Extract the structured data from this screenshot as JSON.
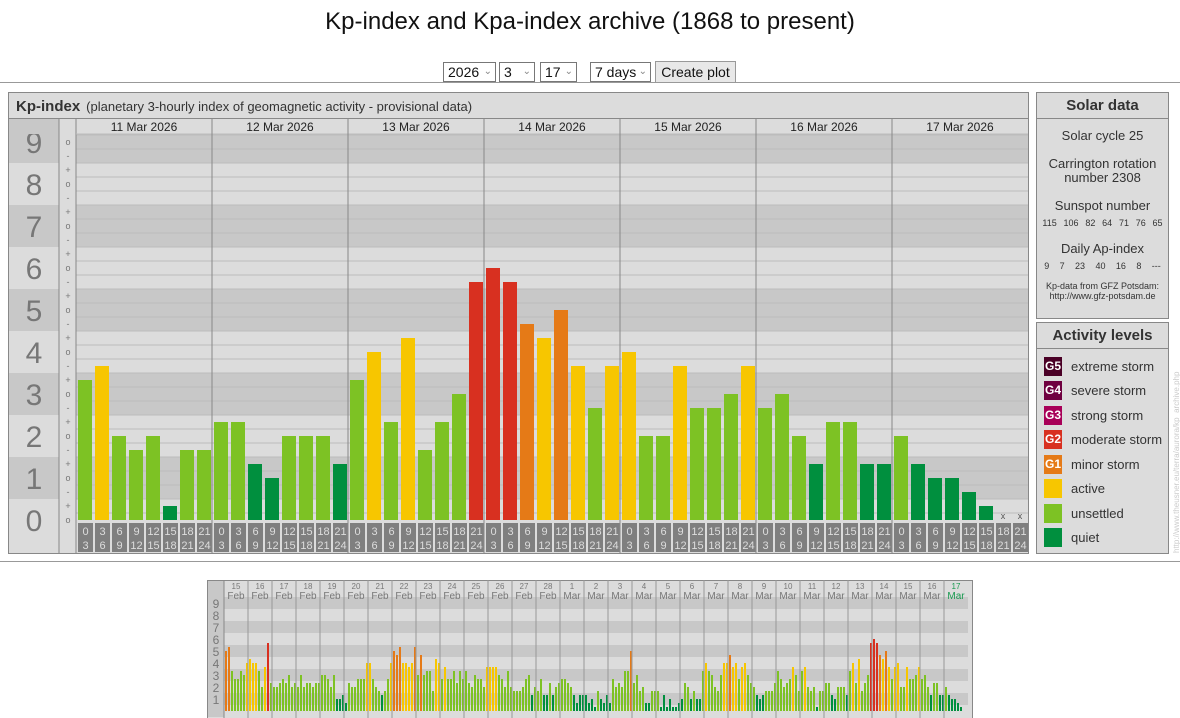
{
  "page_title": "Kp-index and Kpa-index archive (1868 to present)",
  "controls": {
    "year": "2026",
    "month": "3",
    "day": "17",
    "range": "7 days",
    "create_label": "Create plot"
  },
  "main_panel": {
    "title": "Kp-index",
    "subtitle": "(planetary 3-hourly index of geomagnetic activity - provisional data)"
  },
  "solar": {
    "title": "Solar data",
    "cycle": "Solar cycle 25",
    "carrington_1": "Carrington rotation",
    "carrington_2": "number 2308",
    "sunspot_title": "Sunspot number",
    "sunspots": [
      "115",
      "106",
      "82",
      "64",
      "71",
      "76",
      "65"
    ],
    "ap_title": "Daily Ap-index",
    "ap": [
      "9",
      "7",
      "23",
      "40",
      "16",
      "8",
      "---"
    ],
    "source_1": "Kp-data from GFZ Potsdam:",
    "source_2": "http://www.gfz-potsdam.de"
  },
  "activity": {
    "title": "Activity levels",
    "levels": [
      {
        "badge": "G5",
        "label": "extreme storm",
        "color": "#4a0026"
      },
      {
        "badge": "G4",
        "label": "severe storm",
        "color": "#6f0040"
      },
      {
        "badge": "G3",
        "label": "strong storm",
        "color": "#a80058"
      },
      {
        "badge": "G2",
        "label": "moderate storm",
        "color": "#d83020"
      },
      {
        "badge": "G1",
        "label": "minor storm",
        "color": "#e57a17"
      },
      {
        "badge": "",
        "label": "active",
        "color": "#f7c600"
      },
      {
        "badge": "",
        "label": "unsettled",
        "color": "#7dc224"
      },
      {
        "badge": "",
        "label": "quiet",
        "color": "#008f3e"
      }
    ]
  },
  "watermark": "http://www.theusner.eu/terra/aurora/kp_archive.php",
  "chart_data": {
    "type": "bar",
    "title": "Kp-index",
    "year": "2026",
    "ylim": [
      0,
      9
    ],
    "y_ticks": [
      "0",
      "1",
      "2",
      "3",
      "4",
      "5",
      "6",
      "7",
      "8",
      "9"
    ],
    "sub_marks": [
      "o",
      "+",
      "-"
    ],
    "hours": [
      [
        "0",
        "3"
      ],
      [
        "3",
        "6"
      ],
      [
        "6",
        "9"
      ],
      [
        "9",
        "12"
      ],
      [
        "12",
        "15"
      ],
      [
        "15",
        "18"
      ],
      [
        "18",
        "21"
      ],
      [
        "21",
        "24"
      ]
    ],
    "missing_mark": "x",
    "main_days_count": 7,
    "days": [
      {
        "day": "15",
        "month": "Feb",
        "kp": [
          "5o",
          "5+",
          "3+",
          "3-",
          "3-",
          "3+",
          "3o",
          "4o"
        ]
      },
      {
        "day": "16",
        "month": "Feb",
        "kp": [
          "4+",
          "4o",
          "4o",
          "3+",
          "2o",
          "4-",
          "6-",
          "2+"
        ]
      },
      {
        "day": "17",
        "month": "Feb",
        "kp": [
          "2o",
          "2o",
          "2+",
          "3-",
          "2+",
          "3o",
          "2o",
          "2+"
        ]
      },
      {
        "day": "18",
        "month": "Feb",
        "kp": [
          "2o",
          "3o",
          "2o",
          "2+",
          "2+",
          "2o",
          "2+",
          "2+"
        ]
      },
      {
        "day": "19",
        "month": "Feb",
        "kp": [
          "3o",
          "3o",
          "3-",
          "2o",
          "3o",
          "1o",
          "1o",
          "1+"
        ]
      },
      {
        "day": "20",
        "month": "Feb",
        "kp": [
          "1-",
          "2+",
          "2o",
          "2o",
          "3-",
          "3-",
          "3-",
          "4o"
        ]
      },
      {
        "day": "21",
        "month": "Feb",
        "kp": [
          "4o",
          "3-",
          "2o",
          "2-",
          "1+",
          "2-",
          "3-",
          "4o"
        ]
      },
      {
        "day": "22",
        "month": "Feb",
        "kp": [
          "5o",
          "5-",
          "5+",
          "4o",
          "4o",
          "4-",
          "4o",
          "5+"
        ]
      },
      {
        "day": "23",
        "month": "Feb",
        "kp": [
          "3o",
          "5-",
          "3o",
          "3+",
          "3+",
          "2-",
          "4+",
          "4o"
        ]
      },
      {
        "day": "24",
        "month": "Feb",
        "kp": [
          "3-",
          "4-",
          "3-",
          "3-",
          "3+",
          "2+",
          "3+",
          "3-"
        ]
      },
      {
        "day": "25",
        "month": "Feb",
        "kp": [
          "3+",
          "2+",
          "2o",
          "3o",
          "3-",
          "3-",
          "2o",
          "4-"
        ]
      },
      {
        "day": "26",
        "month": "Feb",
        "kp": [
          "4-",
          "4-",
          "4-",
          "3o",
          "3-",
          "2o",
          "3+",
          "2o"
        ]
      },
      {
        "day": "27",
        "month": "Feb",
        "kp": [
          "2-",
          "2-",
          "2-",
          "2o",
          "3-",
          "3o",
          "1+",
          "2o"
        ]
      },
      {
        "day": "28",
        "month": "Feb",
        "kp": [
          "2-",
          "3-",
          "1+",
          "1+",
          "2+",
          "1+",
          "2o",
          "2+"
        ]
      },
      {
        "day": "1",
        "month": "Mar",
        "kp": [
          "3-",
          "3-",
          "2+",
          "2o",
          "1+",
          "1-",
          "1+",
          "1+"
        ]
      },
      {
        "day": "2",
        "month": "Mar",
        "kp": [
          "1+",
          "1-",
          "1o",
          "0+",
          "2-",
          "1o",
          "1-",
          "1+"
        ]
      },
      {
        "day": "3",
        "month": "Mar",
        "kp": [
          "1-",
          "3-",
          "2o",
          "2+",
          "2o",
          "3+",
          "3+",
          "5o"
        ]
      },
      {
        "day": "4",
        "month": "Mar",
        "kp": [
          "2+",
          "3o",
          "2-",
          "2o",
          "1-",
          "1-",
          "2-",
          "2-"
        ]
      },
      {
        "day": "5",
        "month": "Mar",
        "kp": [
          "2-",
          "0+",
          "1+",
          "0+",
          "1o",
          "0+",
          "0+",
          "1-"
        ]
      },
      {
        "day": "6",
        "month": "Mar",
        "kp": [
          "1o",
          "2+",
          "2o",
          "1o",
          "2-",
          "1o",
          "1o",
          "3+"
        ]
      },
      {
        "day": "7",
        "month": "Mar",
        "kp": [
          "4o",
          "3+",
          "3o",
          "2o",
          "2-",
          "3o",
          "4o",
          "4o"
        ]
      },
      {
        "day": "8",
        "month": "Mar",
        "kp": [
          "5-",
          "4-",
          "4o",
          "3-",
          "4-",
          "4o",
          "3o",
          "2+"
        ]
      },
      {
        "day": "9",
        "month": "Mar",
        "kp": [
          "2o",
          "1+",
          "1o",
          "1+",
          "2-",
          "2-",
          "2-",
          "2+"
        ]
      },
      {
        "day": "10",
        "month": "Mar",
        "kp": [
          "3+",
          "3-",
          "2o",
          "2+",
          "3-",
          "4-",
          "3o",
          "2-"
        ]
      },
      {
        "day": "11",
        "month": "Mar",
        "kp": [
          "3+",
          "4-",
          "2o",
          "2-",
          "2o",
          "0+",
          "2-",
          "2-"
        ]
      },
      {
        "day": "12",
        "month": "Mar",
        "kp": [
          "2+",
          "2+",
          "1+",
          "1o",
          "2o",
          "2o",
          "2o",
          "1+"
        ]
      },
      {
        "day": "13",
        "month": "Mar",
        "kp": [
          "3+",
          "4o",
          "2+",
          "4+",
          "2-",
          "2+",
          "3o",
          "6-"
        ]
      },
      {
        "day": "14",
        "month": "Mar",
        "kp": [
          "6o",
          "6-",
          "5-",
          "4+",
          "5o",
          "4-",
          "3-",
          "4-"
        ]
      },
      {
        "day": "15",
        "month": "Mar",
        "kp": [
          "4o",
          "2o",
          "2o",
          "4-",
          "3-",
          "3-",
          "3o",
          "4-"
        ]
      },
      {
        "day": "16",
        "month": "Mar",
        "kp": [
          "3-",
          "3o",
          "2o",
          "1+",
          "2+",
          "2+",
          "1+",
          "1+"
        ]
      },
      {
        "day": "17",
        "month": "Mar",
        "kp": [
          "2o",
          "1+",
          "1o",
          "1o",
          "1-",
          "0+",
          null,
          null
        ]
      }
    ],
    "colors": {
      "quiet": "#008f3e",
      "unsettled": "#7dc224",
      "active": "#f7c600",
      "G1": "#e57a17",
      "G2": "#d83020",
      "G3": "#a80058",
      "G4": "#6f0040",
      "G5": "#4a0026",
      "current_day": "#1a9a50"
    }
  }
}
